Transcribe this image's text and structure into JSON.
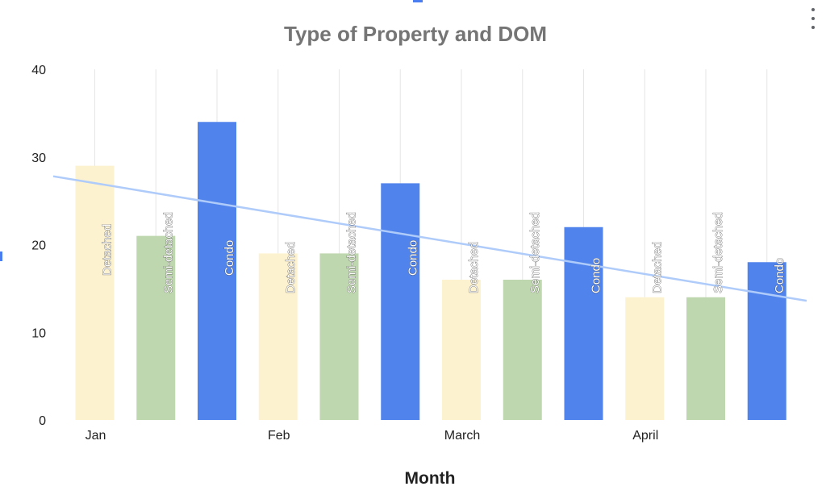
{
  "menu": {
    "icon": "more-vert-icon"
  },
  "chart_data": {
    "type": "bar",
    "title": "Type of Property and DOM",
    "xlabel": "Month",
    "ylabel": "",
    "ylim": [
      0,
      40
    ],
    "yticks": [
      "0",
      "10",
      "20",
      "30",
      "40"
    ],
    "month_labels": [
      "Jan",
      "Feb",
      "March",
      "April"
    ],
    "grid": true,
    "legend": "none",
    "trendline": {
      "type": "linear",
      "color": "#aecbfa",
      "start_value": 27.8,
      "end_value": 13.6
    },
    "bars": [
      {
        "month": "Jan",
        "type": "Detached",
        "value": 29
      },
      {
        "month": "Jan",
        "type": "Semi-detached",
        "value": 21
      },
      {
        "month": "Jan",
        "type": "Condo",
        "value": 34
      },
      {
        "month": "Feb",
        "type": "Detached",
        "value": 19
      },
      {
        "month": "Feb",
        "type": "Semi-detached",
        "value": 19
      },
      {
        "month": "Feb",
        "type": "Condo",
        "value": 27
      },
      {
        "month": "March",
        "type": "Detached",
        "value": 16
      },
      {
        "month": "March",
        "type": "Semi-detached",
        "value": 16
      },
      {
        "month": "March",
        "type": "Condo",
        "value": 22
      },
      {
        "month": "April",
        "type": "Detached",
        "value": 14
      },
      {
        "month": "April",
        "type": "Semi-detached",
        "value": 14
      },
      {
        "month": "April",
        "type": "Condo",
        "value": 18
      }
    ],
    "colors": {
      "Detached": "#fdf2d0",
      "Semi-detached": "#bfd7ae",
      "Condo": "#5084ec"
    }
  }
}
